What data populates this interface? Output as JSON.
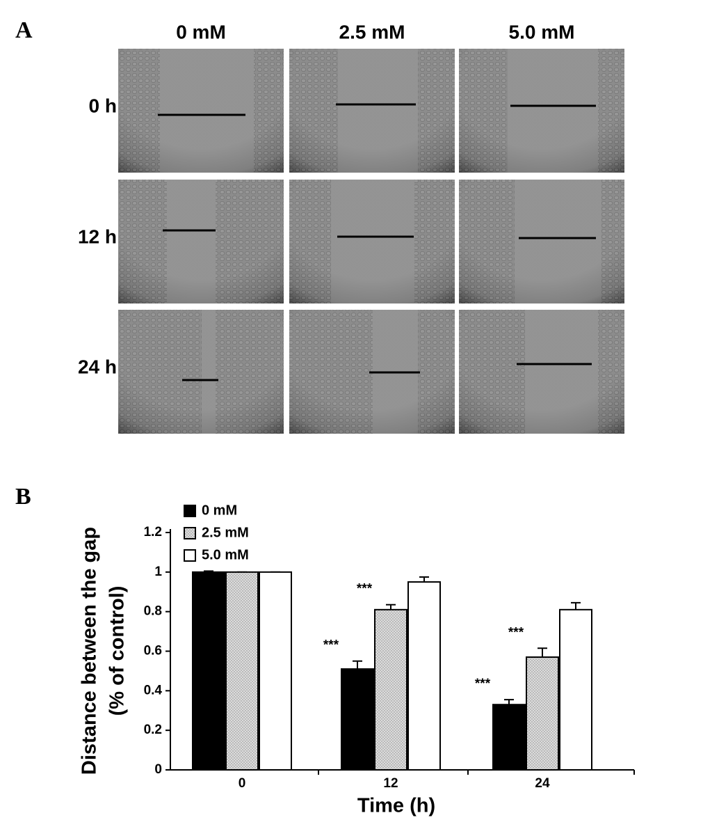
{
  "panel_a": {
    "label": "A",
    "columns": [
      "0 mM",
      "2.5 mM",
      "5.0 mM"
    ],
    "rows": [
      "0 h",
      "12 h",
      "24 h"
    ]
  },
  "panel_b_label": "B",
  "chart_data": {
    "type": "bar",
    "categories": [
      "0",
      "12",
      "24"
    ],
    "series": [
      {
        "name": "0 mM",
        "color": "#000000",
        "values": [
          1.0,
          0.51,
          0.33
        ],
        "errors": [
          0.005,
          0.04,
          0.025
        ],
        "annotations": [
          null,
          "***",
          "***"
        ]
      },
      {
        "name": "2.5 mM",
        "color": "#dcdcdc",
        "values": [
          1.0,
          0.81,
          0.57
        ],
        "errors": [
          0.0,
          0.025,
          0.045
        ],
        "annotations": [
          null,
          "***",
          "***"
        ]
      },
      {
        "name": "5.0 mM",
        "color": "#ffffff",
        "values": [
          1.0,
          0.95,
          0.81
        ],
        "errors": [
          0.0,
          0.025,
          0.035
        ],
        "annotations": [
          null,
          null,
          null
        ]
      }
    ],
    "ylim": [
      0,
      1.2
    ],
    "yticks": [
      0,
      0.2,
      0.4,
      0.6,
      0.8,
      1,
      1.2
    ],
    "ylabel": [
      "Distance between the gap",
      "(% of control)"
    ],
    "xlabel": "Time (h)",
    "legend": "upper-left"
  }
}
